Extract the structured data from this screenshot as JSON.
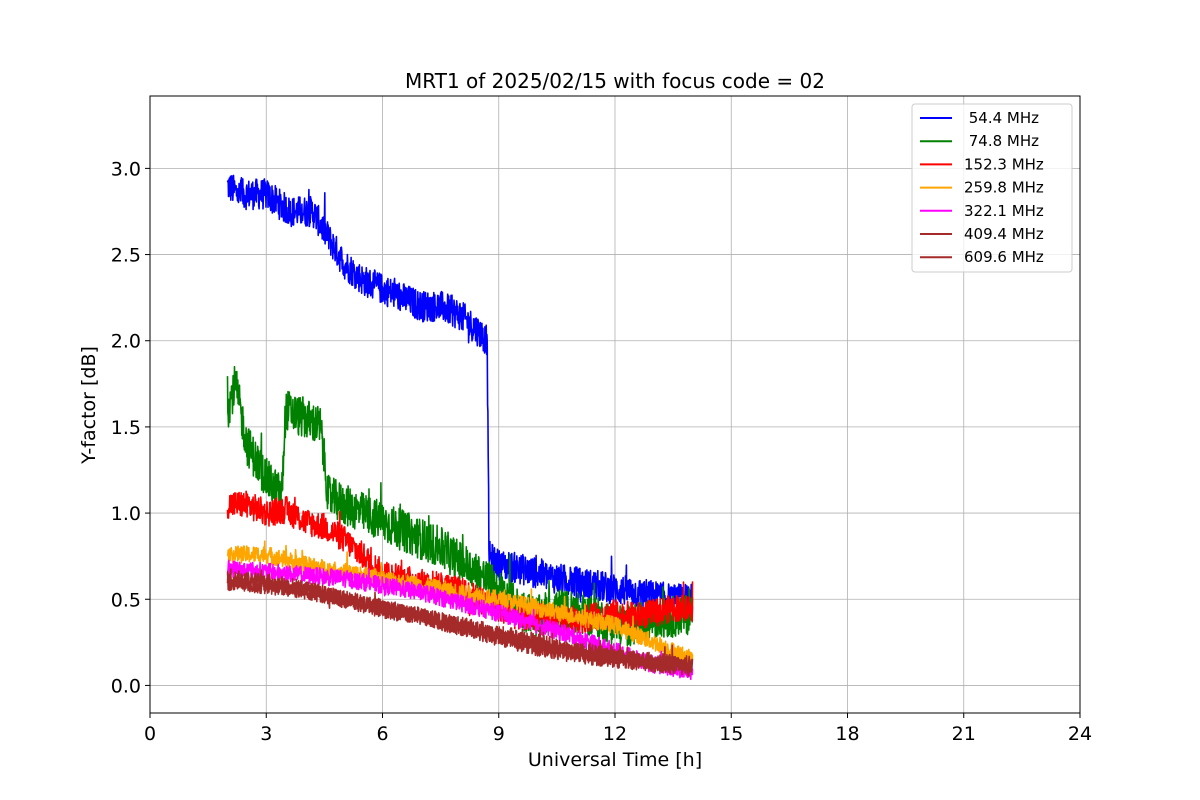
{
  "chart_data": {
    "type": "line",
    "title": "MRT1 of 2025/02/15 with focus code = 02",
    "xlabel": "Universal Time [h]",
    "ylabel": "Y-factor [dB]",
    "xlim": [
      0,
      24
    ],
    "ylim": [
      -0.16,
      3.42
    ],
    "xticks": [
      0,
      3,
      6,
      9,
      12,
      15,
      18,
      21,
      24
    ],
    "yticks": [
      0.0,
      0.5,
      1.0,
      1.5,
      2.0,
      2.5,
      3.0
    ],
    "xtick_labels": [
      "0",
      "3",
      "6",
      "9",
      "12",
      "15",
      "18",
      "21",
      "24"
    ],
    "ytick_labels": [
      "0.0",
      "0.5",
      "1.0",
      "1.5",
      "2.0",
      "2.5",
      "3.0"
    ],
    "grid": true,
    "legend_position": "top-right",
    "series": [
      {
        "name": " 54.4 MHz",
        "color": "#0000ff",
        "noise": 0.09,
        "x": [
          2.0,
          2.3,
          3.0,
          3.6,
          4.2,
          4.6,
          5.0,
          5.5,
          6.0,
          6.5,
          7.0,
          7.5,
          8.0,
          8.5,
          8.7,
          8.75,
          9.0,
          9.5,
          10.0,
          10.5,
          11.0,
          11.5,
          12.0,
          12.5,
          13.0,
          13.5,
          14.0
        ],
        "y": [
          2.9,
          2.85,
          2.85,
          2.75,
          2.75,
          2.6,
          2.45,
          2.35,
          2.3,
          2.25,
          2.2,
          2.2,
          2.15,
          2.05,
          2.0,
          0.75,
          0.7,
          0.68,
          0.65,
          0.62,
          0.6,
          0.58,
          0.56,
          0.54,
          0.52,
          0.5,
          0.5
        ]
      },
      {
        "name": " 74.8 MHz",
        "color": "#008000",
        "noise": 0.12,
        "x": [
          2.0,
          2.2,
          2.5,
          3.0,
          3.4,
          3.5,
          4.0,
          4.4,
          4.6,
          5.0,
          5.5,
          6.0,
          6.5,
          7.0,
          7.5,
          8.0,
          8.5,
          9.0,
          9.5,
          10.0,
          10.5,
          11.0,
          11.5,
          12.0,
          12.5,
          13.0,
          13.5,
          14.0
        ],
        "y": [
          1.6,
          1.75,
          1.4,
          1.2,
          1.1,
          1.6,
          1.55,
          1.5,
          1.1,
          1.05,
          1.0,
          0.95,
          0.9,
          0.85,
          0.8,
          0.72,
          0.65,
          0.55,
          0.45,
          0.4,
          0.45,
          0.42,
          0.4,
          0.35,
          0.35,
          0.38,
          0.4,
          0.42
        ]
      },
      {
        "name": "152.3 MHz",
        "color": "#ff0000",
        "noise": 0.08,
        "x": [
          2.0,
          2.5,
          3.0,
          3.5,
          4.0,
          4.5,
          5.0,
          5.5,
          6.0,
          6.5,
          7.0,
          7.5,
          8.0,
          8.5,
          9.0,
          9.5,
          10.0,
          10.5,
          11.0,
          11.5,
          12.0,
          12.5,
          13.0,
          13.5,
          14.0
        ],
        "y": [
          1.05,
          1.05,
          1.0,
          1.02,
          0.95,
          0.92,
          0.85,
          0.75,
          0.65,
          0.62,
          0.6,
          0.58,
          0.55,
          0.5,
          0.45,
          0.4,
          0.4,
          0.38,
          0.38,
          0.4,
          0.42,
          0.4,
          0.42,
          0.45,
          0.45
        ]
      },
      {
        "name": "259.8 MHz",
        "color": "#ffa500",
        "noise": 0.05,
        "x": [
          2.0,
          3.0,
          4.0,
          5.0,
          6.0,
          7.0,
          8.0,
          9.0,
          10.0,
          11.0,
          12.0,
          12.5,
          13.0,
          14.0
        ],
        "y": [
          0.76,
          0.76,
          0.7,
          0.66,
          0.62,
          0.58,
          0.54,
          0.5,
          0.45,
          0.4,
          0.35,
          0.3,
          0.25,
          0.15
        ]
      },
      {
        "name": "322.1 MHz",
        "color": "#ff00ff",
        "noise": 0.05,
        "x": [
          2.0,
          3.0,
          4.0,
          5.0,
          6.0,
          7.0,
          8.0,
          9.0,
          10.0,
          11.0,
          12.0,
          13.0,
          14.0
        ],
        "y": [
          0.68,
          0.66,
          0.64,
          0.62,
          0.58,
          0.54,
          0.48,
          0.42,
          0.35,
          0.28,
          0.2,
          0.12,
          0.08
        ]
      },
      {
        "name": "409.4 MHz",
        "color": "#a52a2a",
        "noise": 0.05,
        "x": [
          2.0,
          3.0,
          4.0,
          5.0,
          6.0,
          7.0,
          8.0,
          9.0,
          10.0,
          11.0,
          12.0,
          13.0,
          14.0
        ],
        "y": [
          0.6,
          0.58,
          0.55,
          0.5,
          0.45,
          0.4,
          0.35,
          0.3,
          0.25,
          0.2,
          0.17,
          0.14,
          0.12
        ]
      },
      {
        "name": "609.6 MHz",
        "color": "#a52a2a",
        "noise": 0.05,
        "x": [
          2.0,
          3.0,
          4.0,
          5.0,
          6.0,
          7.0,
          8.0,
          9.0,
          10.0,
          11.0,
          12.0,
          13.0,
          14.0
        ],
        "y": [
          0.62,
          0.6,
          0.56,
          0.5,
          0.44,
          0.4,
          0.34,
          0.28,
          0.22,
          0.18,
          0.15,
          0.13,
          0.1
        ]
      }
    ]
  }
}
